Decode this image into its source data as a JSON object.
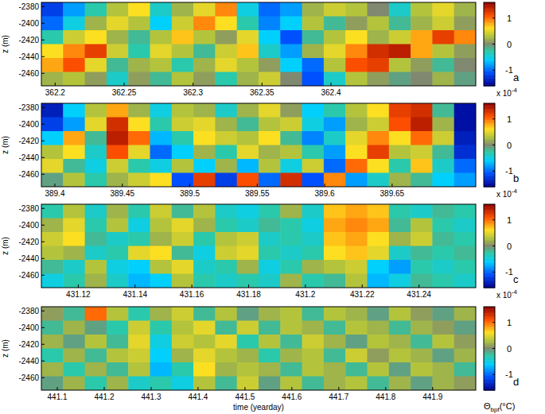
{
  "chart_data": [
    {
      "type": "heatmap",
      "panel_label": "a",
      "ylabel": "z (m)",
      "xlim": [
        362.19,
        362.505
      ],
      "xticks": [
        362.2,
        362.25,
        362.3,
        362.35,
        362.4
      ],
      "ylim": [
        -2475,
        -2375
      ],
      "yticks": [
        -2380,
        -2400,
        -2420,
        -2440,
        -2460
      ],
      "cells": [
        [
          -1.2,
          -0.8,
          -0.3,
          0.3,
          0.6,
          -0.4,
          0.2,
          0.5,
          0.9,
          -0.5,
          -1.0,
          -0.8,
          0.2,
          0.4,
          0.3,
          0.0,
          -0.4,
          0.3,
          0.5,
          0.2
        ],
        [
          -1.0,
          -0.5,
          0.2,
          0.5,
          0.3,
          -0.6,
          0.4,
          0.9,
          0.6,
          -0.3,
          -0.9,
          -0.6,
          0.3,
          -0.2,
          0.1,
          0.3,
          -0.2,
          0.2,
          0.4,
          0.1
        ],
        [
          -0.3,
          0.4,
          0.6,
          0.2,
          -0.2,
          0.3,
          0.7,
          0.3,
          0.1,
          0.5,
          -0.6,
          -1.1,
          -0.2,
          0.3,
          0.6,
          0.2,
          0.4,
          0.8,
          1.2,
          0.9
        ],
        [
          0.6,
          0.9,
          1.2,
          0.4,
          -0.3,
          0.5,
          0.3,
          -0.2,
          0.4,
          0.7,
          -0.4,
          -0.8,
          0.2,
          0.5,
          0.9,
          1.3,
          1.4,
          0.8,
          0.3,
          0.1
        ],
        [
          0.8,
          1.1,
          0.5,
          -0.2,
          0.2,
          0.3,
          -0.3,
          0.2,
          0.5,
          0.3,
          0.1,
          -0.6,
          -1.0,
          0.3,
          1.1,
          1.2,
          0.3,
          0.1,
          -0.2,
          0.0
        ],
        [
          0.2,
          0.3,
          0.1,
          -0.4,
          0.1,
          -0.2,
          0.3,
          0.1,
          -0.3,
          0.2,
          0.4,
          0.0,
          -1.1,
          -0.4,
          0.3,
          0.1,
          -0.1,
          0.0,
          0.2,
          -0.1
        ]
      ],
      "colorbar_lim": [
        -1.6,
        1.6
      ],
      "colorbar_ticks": [
        -1,
        0,
        1
      ],
      "colorbar_multiplier": {
        "base": "x 10",
        "exponent": "-4"
      }
    },
    {
      "type": "heatmap",
      "panel_label": "b",
      "ylabel": "z (m)",
      "xlim": [
        389.39,
        389.712
      ],
      "xticks": [
        389.4,
        389.45,
        389.5,
        389.55,
        389.6,
        389.65
      ],
      "ylim": [
        -2475,
        -2375
      ],
      "yticks": [
        -2380,
        -2400,
        -2420,
        -2440,
        -2460
      ],
      "cells": [
        [
          -1.4,
          -0.6,
          0.3,
          0.8,
          0.2,
          -0.5,
          0.3,
          0.2,
          -0.4,
          0.2,
          0.5,
          0.1,
          -0.6,
          -0.3,
          0.3,
          0.6,
          1.2,
          1.3,
          -0.2,
          -1.5
        ],
        [
          -1.2,
          -0.8,
          0.5,
          1.3,
          0.6,
          -0.3,
          0.4,
          0.5,
          0.2,
          -0.2,
          0.3,
          0.4,
          -0.5,
          -0.8,
          0.2,
          0.4,
          1.1,
          1.4,
          0.2,
          -1.5
        ],
        [
          -0.6,
          0.8,
          -0.2,
          1.4,
          1.0,
          -0.7,
          -0.3,
          0.6,
          0.4,
          0.3,
          0.6,
          -0.2,
          -0.9,
          -0.4,
          0.5,
          0.9,
          0.6,
          1.0,
          0.4,
          -1.4
        ],
        [
          0.3,
          0.6,
          -0.4,
          1.1,
          0.5,
          -1.0,
          -0.6,
          0.2,
          -0.3,
          0.5,
          0.2,
          0.3,
          -0.3,
          -0.8,
          0.6,
          1.2,
          0.3,
          0.4,
          -0.2,
          -1.3
        ],
        [
          0.5,
          -0.2,
          -0.5,
          0.4,
          -0.3,
          -0.5,
          0.3,
          -0.6,
          0.2,
          -0.7,
          0.3,
          -0.5,
          0.4,
          -1.0,
          1.0,
          0.6,
          -0.3,
          0.7,
          -0.4,
          -1.0
        ],
        [
          -0.1,
          0.3,
          -0.3,
          0.2,
          0.4,
          0.6,
          -1.1,
          1.2,
          -1.2,
          1.1,
          -1.0,
          1.3,
          -1.1,
          0.9,
          -0.8,
          -0.4,
          0.2,
          -0.2,
          -0.6,
          -0.8
        ]
      ],
      "colorbar_lim": [
        -1.6,
        1.6
      ],
      "colorbar_ticks": [
        -1,
        0,
        1
      ],
      "colorbar_multiplier": {
        "base": "x 10",
        "exponent": "-4"
      }
    },
    {
      "type": "heatmap",
      "panel_label": "c",
      "ylabel": "z (m)",
      "xlim": [
        431.107,
        431.26
      ],
      "xticks": [
        431.12,
        431.14,
        431.16,
        431.18,
        431.2,
        431.22,
        431.24
      ],
      "ylim": [
        -2475,
        -2375
      ],
      "yticks": [
        -2380,
        -2400,
        -2420,
        -2440,
        -2460
      ],
      "cells": [
        [
          -0.3,
          0.3,
          -0.4,
          0.2,
          -0.3,
          0.4,
          -0.2,
          0.3,
          -0.4,
          -0.5,
          -0.3,
          0.2,
          -0.4,
          0.7,
          0.8,
          0.7,
          -0.3,
          -0.4,
          -0.2,
          -0.3
        ],
        [
          0.2,
          0.5,
          -0.3,
          0.3,
          -0.5,
          0.3,
          0.5,
          0.2,
          -0.3,
          -0.4,
          -0.2,
          -0.3,
          -0.5,
          0.8,
          0.9,
          0.8,
          -0.2,
          0.3,
          -0.3,
          -0.4
        ],
        [
          0.4,
          0.6,
          -0.2,
          -0.4,
          -0.3,
          0.2,
          0.4,
          -0.3,
          0.3,
          0.4,
          -0.4,
          -0.3,
          -0.4,
          0.7,
          0.8,
          0.6,
          0.2,
          0.4,
          -0.2,
          -0.3
        ],
        [
          0.3,
          0.2,
          -0.4,
          -0.3,
          0.5,
          0.6,
          -0.2,
          -0.5,
          0.4,
          0.5,
          -0.3,
          -0.4,
          -0.3,
          0.6,
          0.7,
          0.5,
          -0.4,
          -0.2,
          -0.3,
          -0.2
        ],
        [
          -0.2,
          -0.4,
          0.3,
          -0.5,
          -0.6,
          0.3,
          0.5,
          -0.4,
          -0.3,
          0.2,
          -0.5,
          -0.3,
          0.2,
          0.3,
          0.4,
          -0.6,
          -0.8,
          -0.3,
          -0.4,
          -0.3
        ],
        [
          -0.5,
          -0.3,
          0.2,
          -0.4,
          -0.7,
          -0.6,
          0.3,
          -0.3,
          -0.4,
          -0.3,
          -0.4,
          0.2,
          -0.3,
          -0.2,
          0.3,
          -0.7,
          -0.5,
          -0.2,
          -0.3,
          -0.4
        ]
      ],
      "colorbar_lim": [
        -1.6,
        1.6
      ],
      "colorbar_ticks": [
        -1,
        0,
        1
      ],
      "colorbar_multiplier": {
        "base": "x 10",
        "exponent": "-4"
      }
    },
    {
      "type": "heatmap",
      "panel_label": "d",
      "ylabel": "z (m)",
      "xlabel": "time (yearday)",
      "xlim": [
        441.066,
        441.992
      ],
      "xticks": [
        441.1,
        441.2,
        441.3,
        441.4,
        441.5,
        441.6,
        441.7,
        441.8,
        441.9
      ],
      "ylim": [
        -2475,
        -2375
      ],
      "yticks": [
        -2380,
        -2400,
        -2420,
        -2440,
        -2460
      ],
      "cells": [
        [
          0.1,
          -0.2,
          1.0,
          0.3,
          -0.3,
          0.2,
          0.4,
          -0.2,
          0.3,
          -0.1,
          0.2,
          0.3,
          -0.2,
          0.3,
          0.2,
          -0.1,
          0.3,
          0.1,
          -0.1,
          0.2
        ],
        [
          -0.2,
          0.2,
          -0.1,
          -0.3,
          0.4,
          -0.3,
          0.3,
          0.5,
          -0.2,
          0.4,
          -0.2,
          0.3,
          0.2,
          -0.2,
          0.3,
          0.2,
          -0.2,
          0.2,
          0.1,
          -0.1
        ],
        [
          0.2,
          -0.1,
          0.3,
          -0.2,
          0.5,
          -0.5,
          0.4,
          0.3,
          0.5,
          -0.3,
          0.3,
          -0.2,
          0.4,
          0.2,
          -0.1,
          0.3,
          0.2,
          -0.2,
          0.3,
          0.1
        ],
        [
          -0.3,
          0.2,
          -0.2,
          0.3,
          0.4,
          -0.6,
          0.2,
          0.5,
          0.3,
          0.2,
          -0.3,
          0.2,
          0.3,
          -0.2,
          0.4,
          0.1,
          0.3,
          0.2,
          -0.1,
          0.2
        ],
        [
          0.2,
          -0.3,
          0.2,
          -0.2,
          0.3,
          -0.7,
          -0.3,
          0.6,
          0.2,
          0.3,
          0.2,
          -0.2,
          0.3,
          0.2,
          -0.2,
          0.3,
          -0.1,
          0.3,
          0.2,
          -0.2
        ],
        [
          -0.1,
          0.2,
          -0.3,
          0.2,
          -0.4,
          -0.3,
          -0.5,
          0.3,
          -0.2,
          0.4,
          -0.1,
          0.3,
          -0.2,
          0.2,
          0.3,
          -0.2,
          0.2,
          -0.1,
          0.2,
          0.1
        ]
      ],
      "colorbar_lim": [
        -1.6,
        1.6
      ],
      "colorbar_ticks": [
        -1,
        0,
        1
      ],
      "colorbar_title": {
        "symbol": "Θ",
        "subscript": "bpf",
        "unit": "(°C)"
      }
    }
  ]
}
